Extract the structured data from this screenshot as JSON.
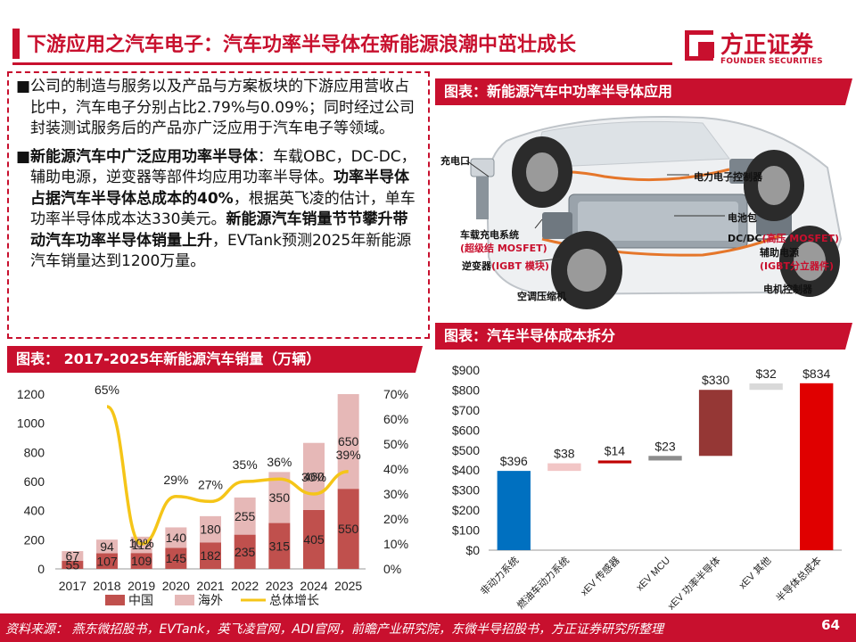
{
  "header": {
    "title": "下游应用之汽车电子：汽车功率半导体在新能源浪潮中茁壮成长",
    "logo_cn": "方正证券",
    "logo_en": "FOUNDER SECURITIES"
  },
  "text": {
    "p1": "公司的制造与服务以及产品与方案板块的下游应用营收占比中，汽车电子分别占比2.79%与0.09%；同时经过公司封装测试服务后的产品亦广泛应用于汽车电子等领域。",
    "p2_bold1": "新能源汽车中广泛应用功率半导体",
    "p2_t1": "：车载OBC，DC-DC，辅助电源，逆变器等部件均应用功率半导体。",
    "p2_bold2": "功率半导体占据汽车半导体总成本的40%",
    "p2_t2": "，根据英飞凌的估计，单车功率半导体成本达330美元。",
    "p2_bold3": "新能源汽车销量节节攀升带动汽车功率半导体销量上升",
    "p2_t3": "，EVTank预测2025年新能源汽车销量达到1200万量。",
    "bullet": "■"
  },
  "panels": {
    "car_title": "图表：新能源汽车中功率半导体应用",
    "sales_title": "图表： 2017-2025年新能源汽车销量（万辆）",
    "cost_title": "图表：汽车半导体成本拆分"
  },
  "car_labels": {
    "charge_port": "充电口",
    "obc": "车载充电系统",
    "obc_mos": "(超级结 MOSFET)",
    "inverter": "逆变器",
    "inverter_igbt": "(IGBT 模块)",
    "ac_compressor": "空调压缩机",
    "pe_controller": "电力电子控制器",
    "battery": "电池包",
    "dcdc": "DC/DC",
    "dcdc_mos": "(高压 MOSFET)",
    "aux_power": "辅助电源",
    "aux_igbt": "(IGBT分立器件)",
    "motor_ctrl": "电机控制器"
  },
  "colors": {
    "brand": "#c8102e",
    "china": "#c0504d",
    "overseas": "#e6b8b7",
    "growth": "#f5c518",
    "blue": "#0070c0",
    "c_fuel": "#f2c6c6",
    "c_sensor": "#c00000",
    "c_mcu": "#8c8c8c",
    "c_power": "#953735",
    "c_other": "#d9d9d9",
    "c_total": "#e00000"
  },
  "chart_data": [
    {
      "type": "bar",
      "title": "2017-2025年新能源汽车销量（万辆）",
      "categories": [
        "2017",
        "2018",
        "2019",
        "2020",
        "2021",
        "2022",
        "2023",
        "2024",
        "2025"
      ],
      "series": [
        {
          "name": "中国",
          "values": [
            55,
            107,
            109,
            145,
            182,
            235,
            315,
            405,
            550
          ]
        },
        {
          "name": "海外",
          "values": [
            67,
            94,
            112,
            140,
            180,
            255,
            350,
            460,
            650
          ]
        },
        {
          "name": "总体增长",
          "type": "line",
          "axis": "right",
          "values": [
            null,
            0.65,
            0.1,
            0.29,
            0.27,
            0.35,
            0.36,
            0.3,
            0.39
          ]
        }
      ],
      "y_left": {
        "min": 0,
        "max": 1200,
        "ticks": [
          "0",
          "200",
          "400",
          "600",
          "800",
          "1000",
          "1200"
        ]
      },
      "y_right": {
        "min": 0,
        "max": 0.7,
        "ticks": [
          "0%",
          "10%",
          "20%",
          "30%",
          "40%",
          "50%",
          "60%",
          "70%"
        ]
      },
      "china_labels": [
        "55",
        "107",
        "109",
        "145",
        "182",
        "235",
        "315",
        "405",
        "550"
      ],
      "overseas_labels": [
        "67",
        "94",
        "112",
        "140",
        "180",
        "255",
        "350",
        "460",
        "650"
      ],
      "growth_labels": [
        "",
        "65%",
        "10%",
        "29%",
        "27%",
        "35%",
        "36%",
        "30%",
        "39%"
      ],
      "legend": [
        "中国",
        "海外",
        "总体增长"
      ]
    },
    {
      "type": "bar",
      "subtype": "waterfall",
      "title": "汽车半导体成本拆分",
      "categories": [
        "非动力系统",
        "燃油车动力系统",
        "xEV 传感器",
        "xEV  MCU",
        "xEV 功率半导体",
        "xEV  其他",
        "半导体总成本"
      ],
      "values": [
        396,
        38,
        14,
        23,
        330,
        32,
        834
      ],
      "value_labels": [
        "$396",
        "$38",
        "$14",
        "$23",
        "$330",
        "$32",
        "$834"
      ],
      "y_ticks": [
        "$0",
        "$100",
        "$200",
        "$300",
        "$400",
        "$500",
        "$600",
        "$700",
        "$800",
        "$900"
      ],
      "ylim": [
        0,
        900
      ]
    }
  ],
  "footer": {
    "source": "资料来源：  燕东微招股书，EVTank，英飞凌官网，ADI官网，前瞻产业研究院，东微半导招股书，方正证券研究所整理",
    "page": "64"
  }
}
